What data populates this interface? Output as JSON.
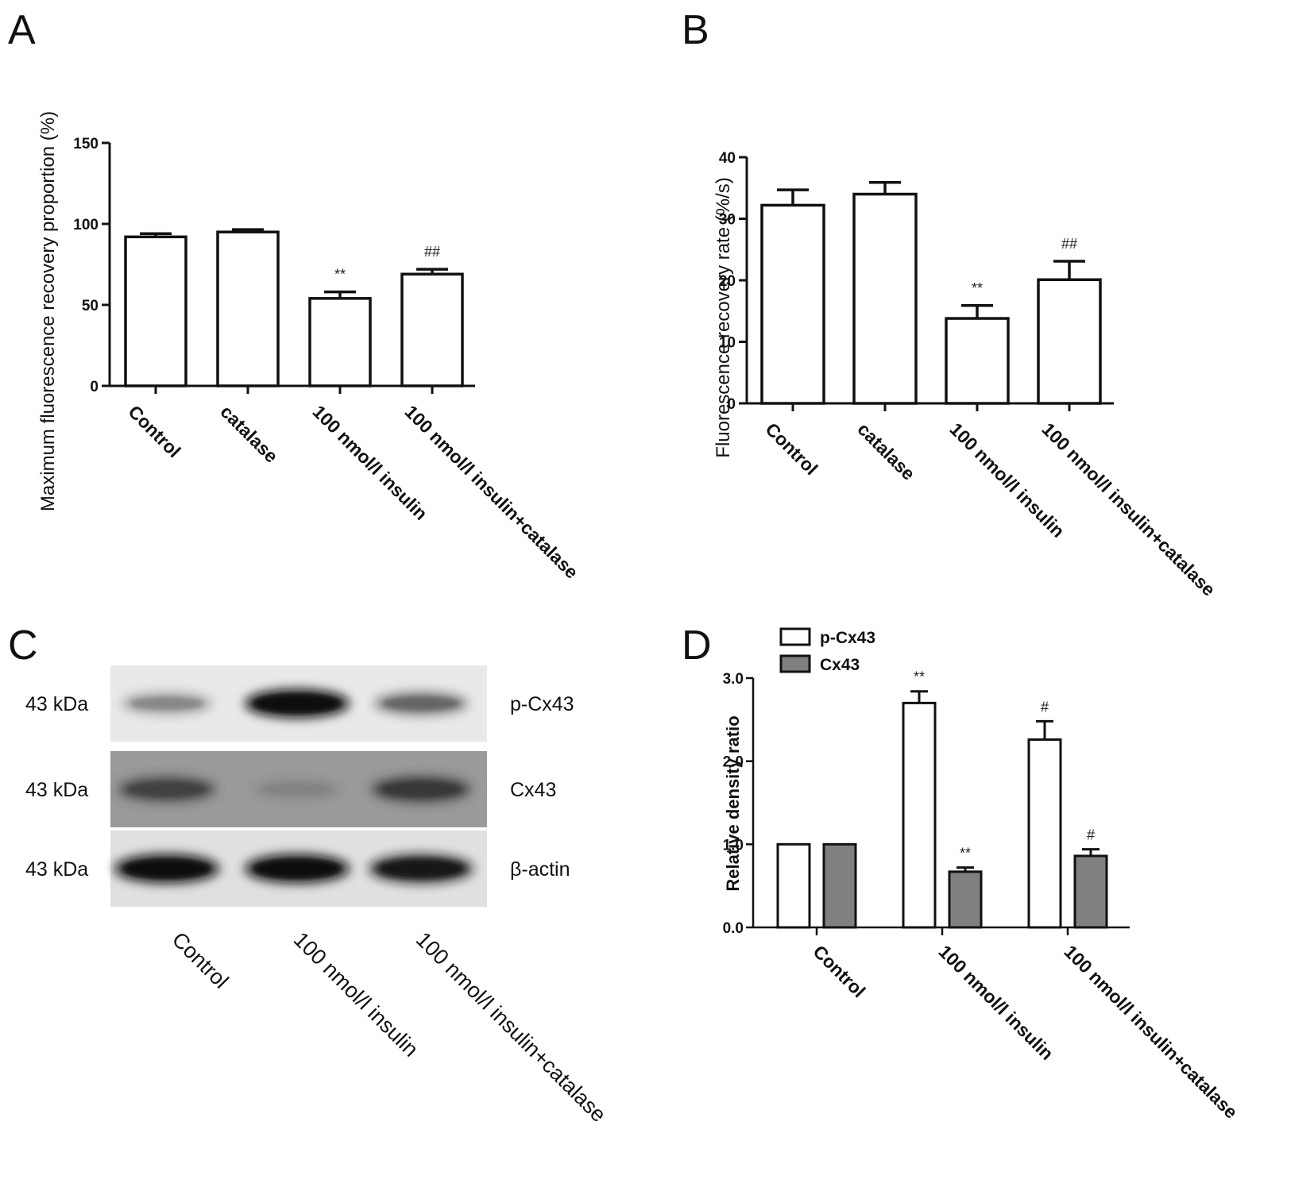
{
  "panels": {
    "A": "A",
    "B": "B",
    "C": "C",
    "D": "D"
  },
  "chart_data": [
    {
      "panel": "A",
      "type": "bar",
      "ylabel": "Maximum fluorescence recovery proportion (%)",
      "ylim": [
        0,
        150
      ],
      "yticks": [
        "0",
        "50",
        "100",
        "150"
      ],
      "categories": [
        "Control",
        "catalase",
        "100 nmol/l  insulin",
        "100 nmol/l  insulin+catalase"
      ],
      "values": [
        92,
        95,
        54,
        69
      ],
      "errors": [
        2,
        1.5,
        4,
        3
      ],
      "annotations": [
        "",
        "",
        "**",
        "##"
      ],
      "grid": false
    },
    {
      "panel": "B",
      "type": "bar",
      "ylabel": "Fluorescence recovery rate (%/s)",
      "ylim": [
        0,
        40
      ],
      "yticks": [
        "0",
        "10",
        "20",
        "30",
        "40"
      ],
      "categories": [
        "Control",
        "catalase",
        "100 nmol/l  insulin",
        "100 nmol/l  insulin+catalase"
      ],
      "values": [
        32.2,
        34.0,
        13.8,
        20.1
      ],
      "errors": [
        2.5,
        1.9,
        2.1,
        3.0
      ],
      "annotations": [
        "",
        "",
        "**",
        "##"
      ],
      "grid": false
    },
    {
      "panel": "D",
      "type": "bar",
      "ylabel": "Relative density ratio",
      "ylim": [
        0,
        3.0
      ],
      "yticks": [
        "0.0",
        "1.0",
        "2.0",
        "3.0"
      ],
      "categories": [
        "Control",
        "100 nmol/l insulin",
        "100 nmol/l insulin+catalase"
      ],
      "series": [
        {
          "name": "p-Cx43",
          "values": [
            1.0,
            2.7,
            2.26
          ],
          "errors": [
            0,
            0.14,
            0.22
          ],
          "annotations": [
            "",
            "**",
            "#"
          ],
          "color": "#ffffff"
        },
        {
          "name": "Cx43",
          "values": [
            1.0,
            0.67,
            0.86
          ],
          "errors": [
            0,
            0.05,
            0.08
          ],
          "annotations": [
            "",
            "**",
            "#"
          ],
          "color": "#808080"
        }
      ],
      "legend": "top-left",
      "grid": false
    }
  ],
  "blot": {
    "rows": [
      {
        "mw": "43 kDa",
        "protein": "p-Cx43",
        "intensities": [
          0.45,
          1.0,
          0.6
        ],
        "background": "#e9e9e9"
      },
      {
        "mw": "43 kDa",
        "protein": "Cx43",
        "intensities": [
          0.75,
          0.4,
          0.8
        ],
        "background": "#9a9a9a"
      },
      {
        "mw": "43 kDa",
        "protein": "β-actin",
        "intensities": [
          1.0,
          1.0,
          0.95
        ],
        "background": "#e0e0e0"
      }
    ],
    "lanes": [
      "Control",
      "100 nmol/l insulin",
      "100 nmol/l insulin+catalase"
    ]
  }
}
